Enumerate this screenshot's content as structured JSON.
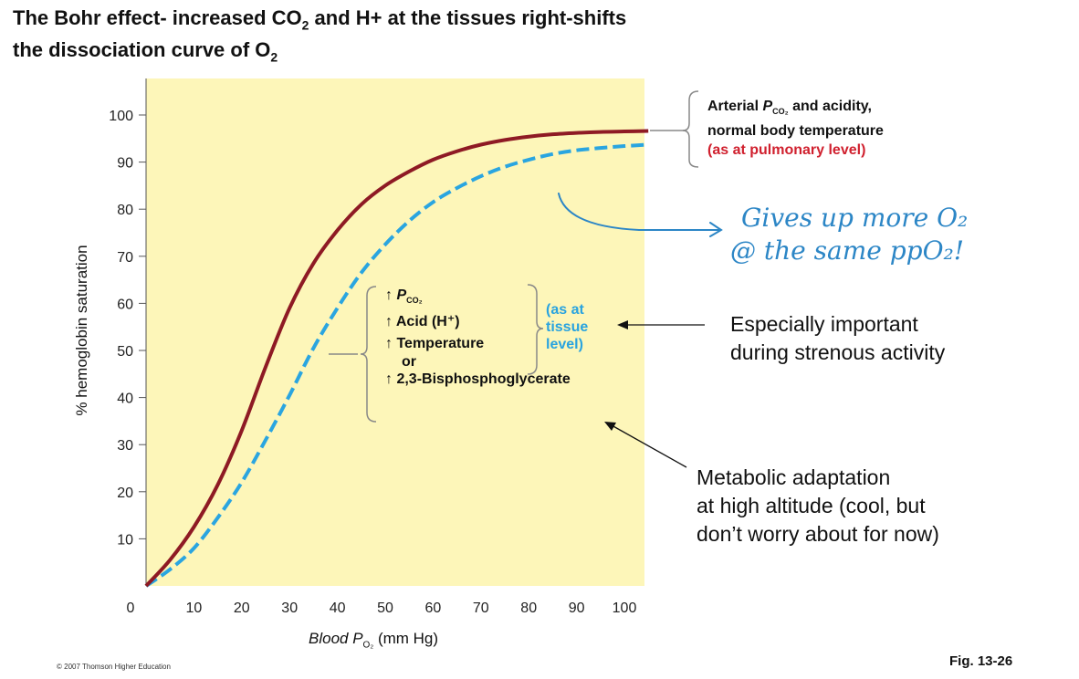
{
  "title": {
    "line1_pre": "The Bohr effect- increased CO",
    "line1_sub": "2",
    "line1_post": " and H+  at the tissues right-shifts",
    "line2_pre": "the dissociation curve of O",
    "line2_sub": "2"
  },
  "chart_data": {
    "type": "line",
    "xlabel": "Blood P",
    "xlabel_sub": "O₂",
    "xlabel_unit": "(mm Hg)",
    "ylabel": "% hemoglobin saturation",
    "xlim": [
      0,
      105
    ],
    "ylim": [
      0,
      100
    ],
    "x_ticks": [
      "0",
      "10",
      "20",
      "30",
      "40",
      "50",
      "60",
      "70",
      "80",
      "90",
      "100"
    ],
    "y_ticks": [
      "10",
      "20",
      "30",
      "40",
      "50",
      "60",
      "70",
      "80",
      "90",
      "100"
    ],
    "series": [
      {
        "name": "Arterial",
        "style": "solid",
        "color": "#8e1a24",
        "x": [
          0,
          5,
          10,
          15,
          20,
          25,
          30,
          35,
          40,
          45,
          50,
          55,
          60,
          65,
          70,
          75,
          80,
          85,
          90,
          95,
          100,
          105
        ],
        "y": [
          0,
          5.5,
          12.5,
          21.5,
          33,
          46.5,
          59,
          68.5,
          75.5,
          81,
          85,
          88,
          90.5,
          92.3,
          93.7,
          94.7,
          95.4,
          95.9,
          96.2,
          96.4,
          96.5,
          96.6
        ]
      },
      {
        "name": "Tissue",
        "style": "dashed",
        "color": "#2aa5e0",
        "x": [
          0,
          5,
          10,
          15,
          20,
          25,
          30,
          35,
          40,
          45,
          50,
          55,
          60,
          65,
          70,
          75,
          80,
          85,
          90,
          95,
          100,
          105
        ],
        "y": [
          0,
          3.5,
          8,
          14.5,
          22,
          31,
          40.5,
          50.5,
          59,
          66.5,
          72.5,
          77.5,
          81.5,
          84.5,
          87,
          89,
          90.5,
          91.7,
          92.5,
          93,
          93.4,
          93.7
        ]
      }
    ]
  },
  "legend_arterial": {
    "line1_pre": "Arterial ",
    "line1_p": "P",
    "line1_sub": "CO₂",
    "line1_post": " and acidity,",
    "line2": "normal body temperature",
    "line3": "(as at pulmonary level)"
  },
  "conditions": {
    "arrow": "↑",
    "pco2": "P",
    "pco2_sub": "CO₂",
    "acid": "Acid (H⁺)",
    "temperature": "Temperature",
    "or": "or",
    "bpg": "2,3-Bisphosphoglycerate",
    "tissue_l1": "(as at",
    "tissue_l2": "tissue",
    "tissue_l3": "level)"
  },
  "notes": {
    "important_l1": "Especially important",
    "important_l2": "during strenous activity",
    "altitude_l1": "Metabolic adaptation",
    "altitude_l2": "at high altitude (cool, but",
    "altitude_l3": "don’t worry about for now)"
  },
  "handwriting": {
    "line1": "Gives up more O₂",
    "line2": "@ the same ppO₂!"
  },
  "copyright": "© 2007 Thomson Higher Education",
  "figure_label": "Fig. 13-26",
  "colors": {
    "plot_bg": "#fdf6b9",
    "arterial": "#8e1a24",
    "tissue": "#2aa5e0",
    "pulmonary_text": "#d0202e",
    "handwriting": "#2c86c6"
  }
}
